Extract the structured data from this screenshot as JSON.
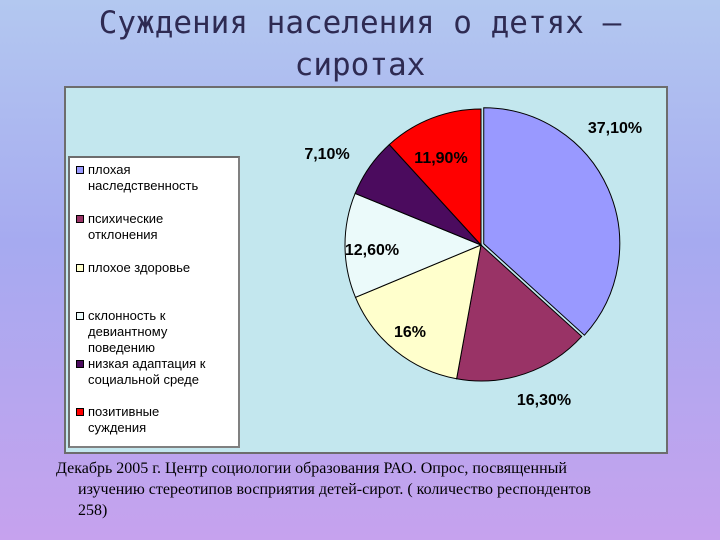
{
  "title_lines": [
    "Суждения населения о детях –",
    "сиротах"
  ],
  "footnote_lines": [
    "Декабрь 2005 г.  Центр социологии образования РАО. Опрос, посвященный",
    "изучению  стереотипов восприятия детей-сирот. ( количество респондентов",
    "258)"
  ],
  "chart_data": {
    "type": "pie",
    "title": "",
    "legend_position": "left",
    "slices": [
      {
        "label": "плохая наследственность",
        "legend_lines": [
          "плохая",
          "наследственность"
        ],
        "value": 37.1,
        "display": "37,10%",
        "color": "#9999ff"
      },
      {
        "label": "психические отклонения",
        "legend_lines": [
          "психические",
          "отклонения"
        ],
        "value": 16.3,
        "display": "16,30%",
        "color": "#993366"
      },
      {
        "label": "плохое здоровье",
        "legend_lines": [
          "плохое здоровье"
        ],
        "value": 16,
        "display": "16%",
        "color": "#ffffcc"
      },
      {
        "label": "склонность к девиантному поведению",
        "legend_lines": [
          "склонность к",
          "девиантному",
          "поведению"
        ],
        "value": 12.6,
        "display": "12,60%",
        "color": "#ebfafa"
      },
      {
        "label": "низкая адаптация к социальной среде",
        "legend_lines": [
          "низкая адаптация  к",
          "социальной среде"
        ],
        "value": 7.1,
        "display": "7,10%",
        "color": "#4b0b5e"
      },
      {
        "label": "позитивные суждения",
        "legend_lines": [
          "позитивные",
          "суждения"
        ],
        "value": 11.9,
        "display": "11,90%",
        "color": "#ff0000"
      }
    ]
  }
}
